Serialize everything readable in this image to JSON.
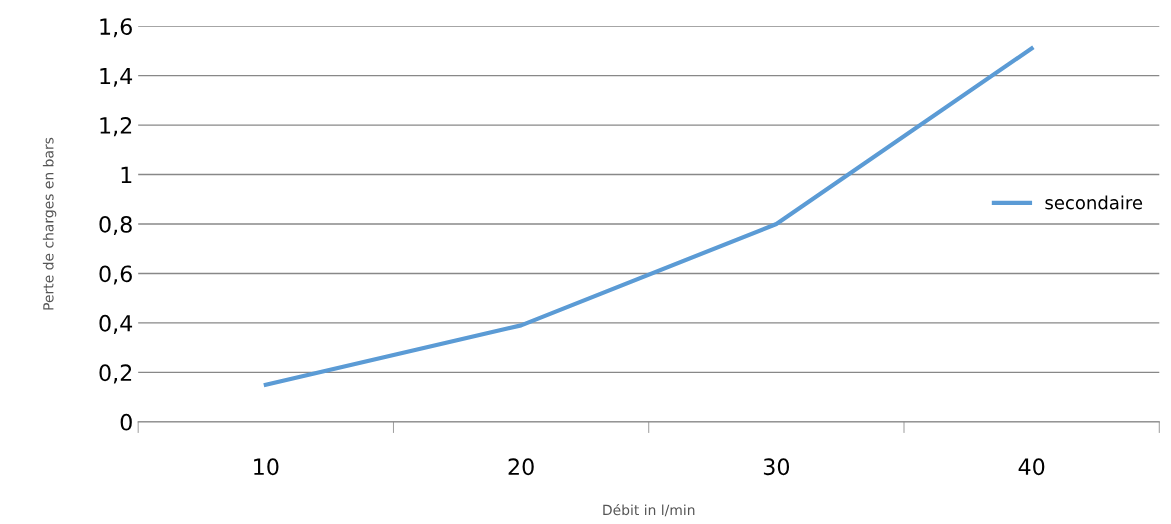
{
  "chart_data": {
    "type": "line",
    "xlabel": "Débit in l/min",
    "ylabel": "Perte de charges en bars",
    "categories": [
      "10",
      "20",
      "30",
      "40"
    ],
    "series": [
      {
        "name": "secondaire",
        "color": "#5b9bd5",
        "values": [
          0.15,
          0.39,
          0.8,
          1.51
        ]
      }
    ],
    "ylim": [
      0,
      1.6
    ],
    "yticks": [
      0,
      {
        "value": 0.2,
        "label": "0,2"
      },
      {
        "value": 0.4,
        "label": "0,4"
      },
      {
        "value": 0.6,
        "label": "0,6"
      },
      {
        "value": 0.8,
        "label": "0,8"
      },
      1,
      {
        "value": 1.2,
        "label": "1,2"
      },
      {
        "value": 1.4,
        "label": "1,4"
      },
      {
        "value": 1.6,
        "label": "1,6"
      }
    ],
    "grid": "y",
    "legend": "right",
    "marker": "none",
    "line_style": "solid"
  }
}
